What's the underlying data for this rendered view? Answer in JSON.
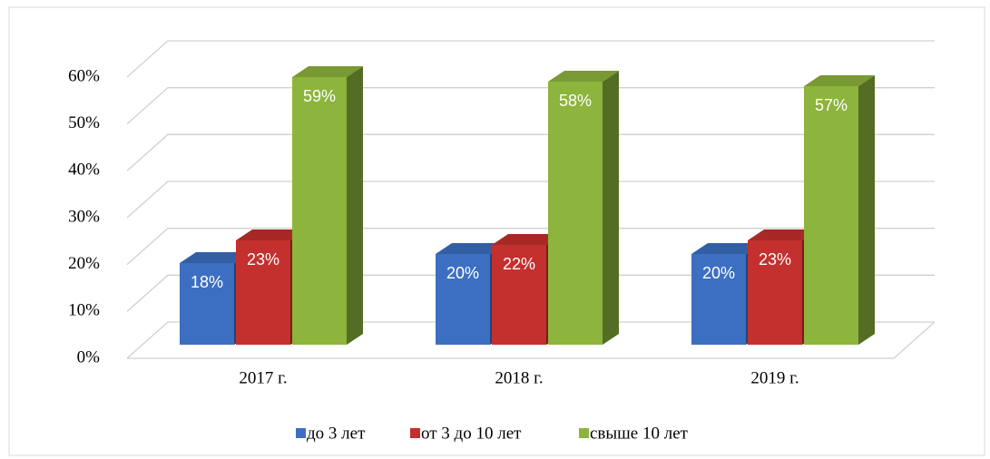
{
  "chart_data": {
    "type": "bar3d",
    "categories": [
      "2017 г.",
      "2018 г.",
      "2019 г."
    ],
    "series": [
      {
        "name": "до 3 лет",
        "color": "#3c6fc1",
        "values": [
          18,
          20,
          20
        ],
        "value_labels": [
          "18%",
          "20%",
          "20%"
        ]
      },
      {
        "name": "от 3 до 10 лет",
        "color": "#c3302d",
        "values": [
          23,
          22,
          23
        ],
        "value_labels": [
          "23%",
          "22%",
          "23%"
        ]
      },
      {
        "name": "свыше 10 лет",
        "color": "#8db43c",
        "values": [
          59,
          58,
          57
        ],
        "value_labels": [
          "59%",
          "58%",
          "57%"
        ]
      }
    ],
    "ylim": [
      0,
      60
    ],
    "yticks": [
      {
        "value": 0,
        "label": "0%"
      },
      {
        "value": 10,
        "label": "10%"
      },
      {
        "value": 20,
        "label": "20%"
      },
      {
        "value": 30,
        "label": "30%"
      },
      {
        "value": 40,
        "label": "40%"
      },
      {
        "value": 50,
        "label": "50%"
      },
      {
        "value": 60,
        "label": "60%"
      }
    ],
    "grid": true,
    "legend": "bottom"
  }
}
